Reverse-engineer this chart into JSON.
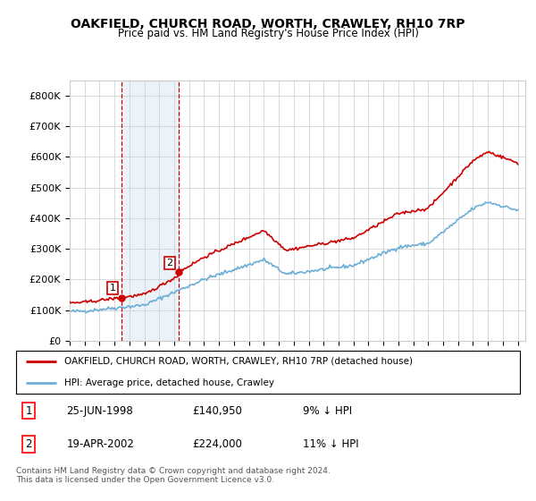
{
  "title": "OAKFIELD, CHURCH ROAD, WORTH, CRAWLEY, RH10 7RP",
  "subtitle": "Price paid vs. HM Land Registry's House Price Index (HPI)",
  "ylim": [
    0,
    850000
  ],
  "yticks": [
    0,
    100000,
    200000,
    300000,
    400000,
    500000,
    600000,
    700000,
    800000
  ],
  "ytick_labels": [
    "£0",
    "£100K",
    "£200K",
    "£300K",
    "£400K",
    "£500K",
    "£600K",
    "£700K",
    "£800K"
  ],
  "hpi_color": "#6baed6",
  "price_color": "#cc0000",
  "sale1_date": 1998.48,
  "sale1_price": 140950,
  "sale2_date": 2002.3,
  "sale2_price": 224000,
  "shade_color": "#c6dbef",
  "vline_color": "#cc0000",
  "legend_label1": "OAKFIELD, CHURCH ROAD, WORTH, CRAWLEY, RH10 7RP (detached house)",
  "legend_label2": "HPI: Average price, detached house, Crawley",
  "table_row1": [
    "1",
    "25-JUN-1998",
    "£140,950",
    "9% ↓ HPI"
  ],
  "table_row2": [
    "2",
    "19-APR-2002",
    "£224,000",
    "11% ↓ HPI"
  ],
  "footer": "Contains HM Land Registry data © Crown copyright and database right 2024.\nThis data is licensed under the Open Government Licence v3.0.",
  "background_color": "#ffffff",
  "grid_color": "#cccccc"
}
